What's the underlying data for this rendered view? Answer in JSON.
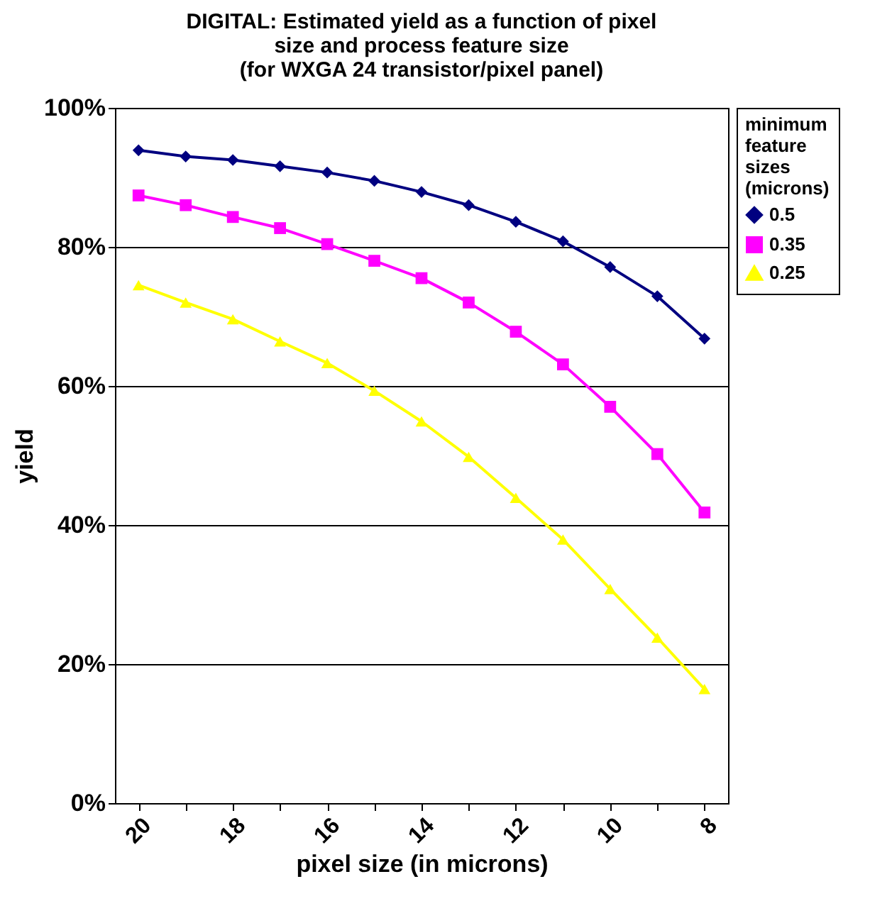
{
  "chart_data": {
    "type": "line",
    "title": "DIGITAL: Estimated yield as a function of pixel size and process feature size",
    "subtitle": "(for WXGA 24 transistor/pixel panel)",
    "xlabel": "pixel size (in microns)",
    "ylabel": "yield",
    "legend_title": "minimum feature sizes (microns)",
    "categories": [
      "20",
      null,
      "18",
      null,
      "16",
      null,
      "14",
      null,
      "12",
      null,
      "10",
      null,
      "8"
    ],
    "ylim": [
      0,
      100
    ],
    "yticks": [
      {
        "value": 0,
        "label": "0%"
      },
      {
        "value": 20,
        "label": "20%"
      },
      {
        "value": 40,
        "label": "40%"
      },
      {
        "value": 60,
        "label": "60%"
      },
      {
        "value": 80,
        "label": "80%"
      },
      {
        "value": 100,
        "label": "100%"
      }
    ],
    "grid": "y",
    "legend": "right",
    "line_style": "solid",
    "series": [
      {
        "name": "0.5",
        "color": "#000080",
        "marker": "diamond",
        "values": [
          93.9,
          93,
          92.5,
          91.6,
          90.7,
          89.5,
          87.9,
          86,
          83.6,
          80.8,
          77.1,
          72.9,
          66.8
        ]
      },
      {
        "name": "0.35",
        "color": "#ff00ff",
        "marker": "square",
        "values": [
          87.4,
          86,
          84.3,
          82.7,
          80.4,
          78,
          75.5,
          72,
          67.8,
          63.1,
          57,
          50.2,
          41.8
        ]
      },
      {
        "name": "0.25",
        "color": "#ffff00",
        "marker": "triangle",
        "values": [
          74.5,
          72,
          69.6,
          66.4,
          63.3,
          59.3,
          54.9,
          49.8,
          43.9,
          37.9,
          30.8,
          23.8,
          16.4
        ]
      }
    ]
  }
}
